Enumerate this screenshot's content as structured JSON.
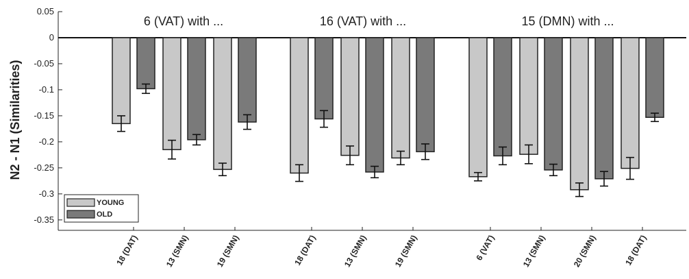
{
  "chart_data": {
    "type": "bar",
    "ylabel": "N2 - N1 (Similarities)",
    "ylim": [
      -0.37,
      0.05
    ],
    "yticks": [
      "0.05",
      "0",
      "-0.05",
      "-0.1",
      "-0.15",
      "-0.2",
      "-0.25",
      "-0.3",
      "-0.35"
    ],
    "ytick_values": [
      0.05,
      0,
      -0.05,
      -0.1,
      -0.15,
      -0.2,
      -0.25,
      -0.3,
      -0.35
    ],
    "legend": {
      "placement": "bottom-left",
      "entries": [
        "YOUNG",
        "OLD"
      ]
    },
    "colors": {
      "young": "#c8c8c8",
      "old": "#7a7a7a",
      "edge": "#222222"
    },
    "groups": [
      {
        "title": "6 (VAT) with ...",
        "categories": [
          "18 (DAT)",
          "13 (SMN)",
          "19 (SMN)"
        ],
        "young": [
          -0.165,
          -0.215,
          -0.253
        ],
        "young_err": [
          0.015,
          0.018,
          0.012
        ],
        "old": [
          -0.098,
          -0.196,
          -0.162
        ],
        "old_err": [
          0.009,
          0.01,
          0.014
        ]
      },
      {
        "title": "16 (VAT) with ...",
        "categories": [
          "18 (DAT)",
          "13 (SMN)",
          "19 (SMN)"
        ],
        "young": [
          -0.26,
          -0.226,
          -0.231
        ],
        "young_err": [
          0.016,
          0.018,
          0.013
        ],
        "old": [
          -0.156,
          -0.258,
          -0.219
        ],
        "old_err": [
          0.016,
          0.011,
          0.015
        ]
      },
      {
        "title": "15 (DMN) with ...",
        "categories": [
          "6 (VAT)",
          "13 (SMN)",
          "20 (SMN)",
          "18 (DAT)"
        ],
        "young": [
          -0.267,
          -0.224,
          -0.292,
          -0.251
        ],
        "young_err": [
          0.008,
          0.018,
          0.013,
          0.021
        ],
        "old": [
          -0.227,
          -0.254,
          -0.271,
          -0.153
        ],
        "old_err": [
          0.017,
          0.011,
          0.014,
          0.008
        ]
      }
    ]
  }
}
